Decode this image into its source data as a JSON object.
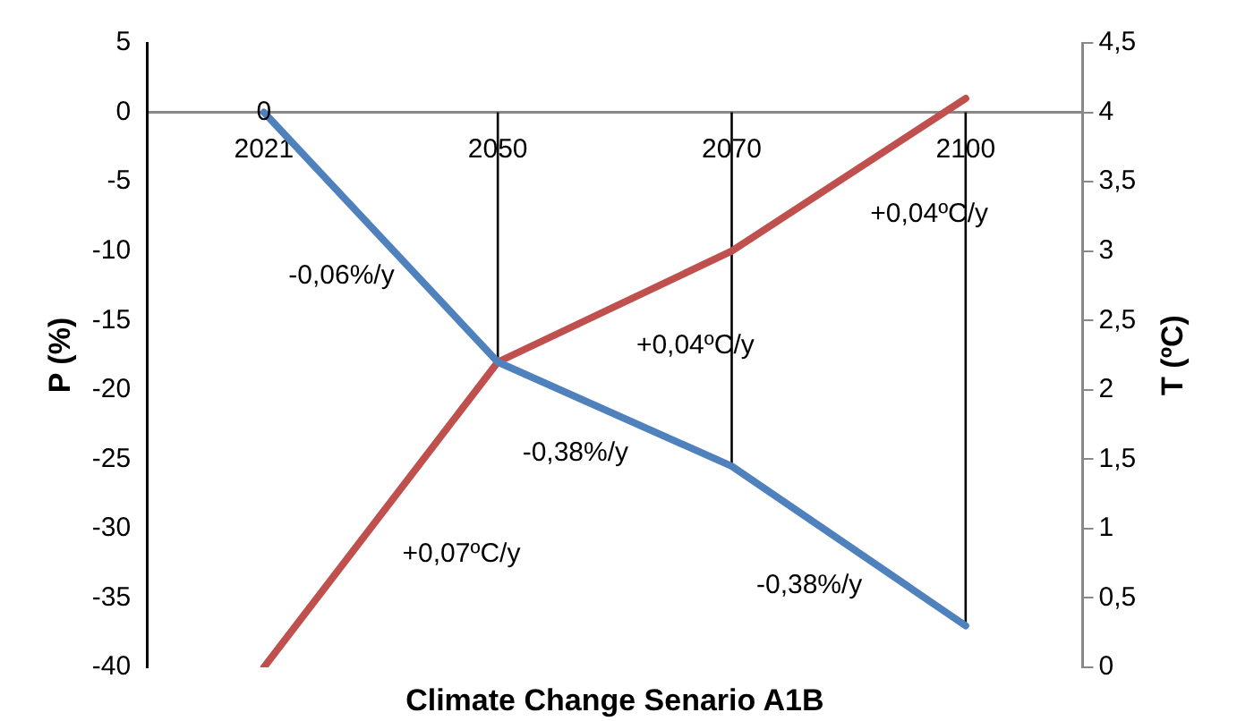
{
  "chart_data": {
    "type": "line",
    "xlabel": "Climate Change Senario A1B",
    "ylabel": "P (%)",
    "y2label": "T (ºC)",
    "categories": [
      "2021",
      "2050",
      "2070",
      "2100"
    ],
    "series": [
      {
        "color": "#4f81bd",
        "values": [
          0,
          -18,
          -25.5,
          -37
        ],
        "value_labels": [
          "0",
          null,
          null,
          null
        ]
      },
      {
        "color": "#c0504d",
        "values": [
          0,
          2.2,
          3,
          4.1
        ],
        "axis": "y2"
      }
    ],
    "ylim": [
      -40,
      5
    ],
    "yticks": [
      -40,
      -35,
      -30,
      -25,
      -20,
      -15,
      -10,
      -5,
      0,
      5
    ],
    "y2lim": [
      0,
      4.5
    ],
    "y2ticks": [
      0,
      {
        "value": 0.5,
        "label": "0,5"
      },
      1,
      {
        "value": 1.5,
        "label": "1,5"
      },
      2,
      {
        "value": 2.5,
        "label": "2,5"
      },
      3,
      {
        "value": 3.5,
        "label": "3,5"
      },
      4,
      {
        "value": 4.5,
        "label": "4,5"
      }
    ],
    "ref_lines": [
      {
        "axis": "x",
        "value": "2050",
        "color": "#000000"
      },
      {
        "axis": "x",
        "value": "2070",
        "color": "#000000"
      },
      {
        "axis": "x",
        "value": "2100",
        "color": "#000000"
      }
    ],
    "annotations": [
      "-0,06%/y",
      "-0,38%/y",
      "-0,38%/y",
      "+0,07ºC/y",
      "+0,04ºC/y",
      "+0,04ºC/y"
    ],
    "grid": false,
    "legend": false,
    "marker": "none",
    "line_style": "solid"
  }
}
